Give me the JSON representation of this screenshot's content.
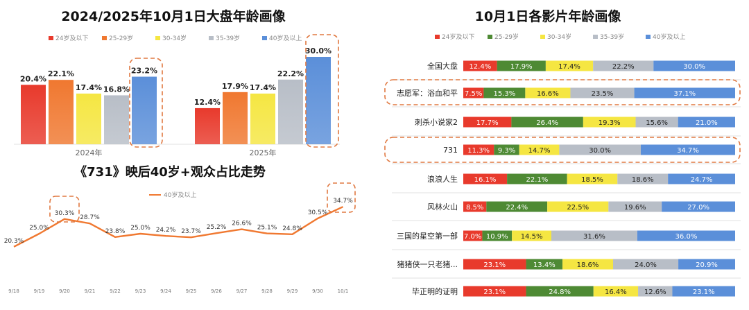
{
  "colors": {
    "age_under_24": "#e83a2c",
    "age_25_29": "#4e8a34",
    "age_30_34": "#f5e642",
    "age_35_39": "#b8bec7",
    "age_40_plus": "#5b8fd9",
    "age_25_29_left": "#f07830",
    "trend_line": "#f07830",
    "annotation": "#e07840"
  },
  "chart_data": [
    {
      "type": "bar",
      "title": "2024/2025年10月1日大盘年龄画像",
      "legend": [
        "24岁及以下",
        "25-29岁",
        "30-34岁",
        "35-39岁",
        "40岁及以上"
      ],
      "categories": [
        "2024年",
        "2025年"
      ],
      "series": [
        {
          "name": "24岁及以下",
          "values": [
            20.4,
            12.4
          ]
        },
        {
          "name": "25-29岁",
          "values": [
            22.1,
            17.9
          ]
        },
        {
          "name": "30-34岁",
          "values": [
            17.4,
            17.4
          ]
        },
        {
          "name": "35-39岁",
          "values": [
            16.8,
            22.2
          ]
        },
        {
          "name": "40岁及以上",
          "values": [
            23.2,
            30.0
          ]
        }
      ],
      "value_labels": [
        [
          "20.4%",
          "22.1%",
          "17.4%",
          "16.8%",
          "23.2%"
        ],
        [
          "12.4%",
          "17.9%",
          "17.4%",
          "22.2%",
          "30.0%"
        ]
      ],
      "highlighted": "40岁及以上",
      "ylim": [
        0,
        32
      ]
    },
    {
      "type": "line",
      "title": "《731》映后40岁+观众占比走势",
      "legend": [
        "40岁及以上"
      ],
      "x": [
        "9/18",
        "9/19",
        "9/20",
        "9/21",
        "9/22",
        "9/23",
        "9/24",
        "9/25",
        "9/26",
        "9/27",
        "9/28",
        "9/29",
        "9/30",
        "10/1"
      ],
      "series": [
        {
          "name": "40岁及以上",
          "values": [
            20.3,
            25.0,
            30.3,
            28.7,
            23.8,
            25.0,
            24.2,
            23.7,
            25.2,
            26.6,
            25.1,
            24.8,
            30.5,
            34.7
          ]
        }
      ],
      "value_labels": [
        "20.3%",
        "25.0%",
        "30.3%",
        "28.7%",
        "23.8%",
        "25.0%",
        "24.2%",
        "23.7%",
        "25.2%",
        "26.6%",
        "25.1%",
        "24.8%",
        "30.5%",
        "34.7%"
      ],
      "highlighted_points": [
        "9/20",
        "10/1"
      ],
      "ylim": [
        0,
        40
      ]
    },
    {
      "type": "bar",
      "orientation": "horizontal-stacked",
      "title": "10月1日各影片年龄画像",
      "legend": [
        "24岁及以下",
        "25-29岁",
        "30-34岁",
        "35-39岁",
        "40岁及以上"
      ],
      "categories": [
        "全国大盘",
        "志愿军：浴血和平",
        "刺杀小说家2",
        "731",
        "浪浪人生",
        "风林火山",
        "三国的星空第一部",
        "猪猪侠一只老猪...",
        "毕正明的证明"
      ],
      "series": [
        {
          "name": "24岁及以下",
          "values": [
            12.4,
            7.5,
            17.7,
            11.3,
            16.1,
            8.5,
            7.0,
            23.1,
            23.1
          ]
        },
        {
          "name": "25-29岁",
          "values": [
            17.9,
            15.3,
            26.4,
            9.3,
            22.1,
            22.4,
            10.9,
            13.4,
            24.8
          ]
        },
        {
          "name": "30-34岁",
          "values": [
            17.4,
            16.6,
            19.3,
            14.7,
            18.5,
            22.5,
            14.5,
            18.6,
            16.4
          ]
        },
        {
          "name": "35-39岁",
          "values": [
            22.2,
            23.5,
            15.6,
            30.0,
            18.6,
            19.6,
            31.6,
            24.0,
            12.6
          ]
        },
        {
          "name": "40岁及以上",
          "values": [
            30.0,
            37.1,
            21.0,
            34.7,
            24.7,
            27.0,
            36.0,
            20.9,
            23.1
          ]
        }
      ],
      "value_labels": [
        [
          "12.4%",
          "17.9%",
          "17.4%",
          "22.2%",
          "30.0%"
        ],
        [
          "7.5%",
          "15.3%",
          "16.6%",
          "23.5%",
          "37.1%"
        ],
        [
          "17.7%",
          "26.4%",
          "19.3%",
          "15.6%",
          "21.0%"
        ],
        [
          "11.3%",
          "9.3%",
          "14.7%",
          "30.0%",
          "34.7%"
        ],
        [
          "16.1%",
          "22.1%",
          "18.5%",
          "18.6%",
          "24.7%"
        ],
        [
          "8.5%",
          "22.4%",
          "22.5%",
          "19.6%",
          "27.0%"
        ],
        [
          "7.0%",
          "10.9%",
          "14.5%",
          "31.6%",
          "36.0%"
        ],
        [
          "23.1%",
          "13.4%",
          "18.6%",
          "24.0%",
          "20.9%"
        ],
        [
          "23.1%",
          "24.8%",
          "16.4%",
          "12.6%",
          "23.1%"
        ]
      ],
      "highlighted_rows": [
        "志愿军：浴血和平",
        "731"
      ]
    }
  ]
}
